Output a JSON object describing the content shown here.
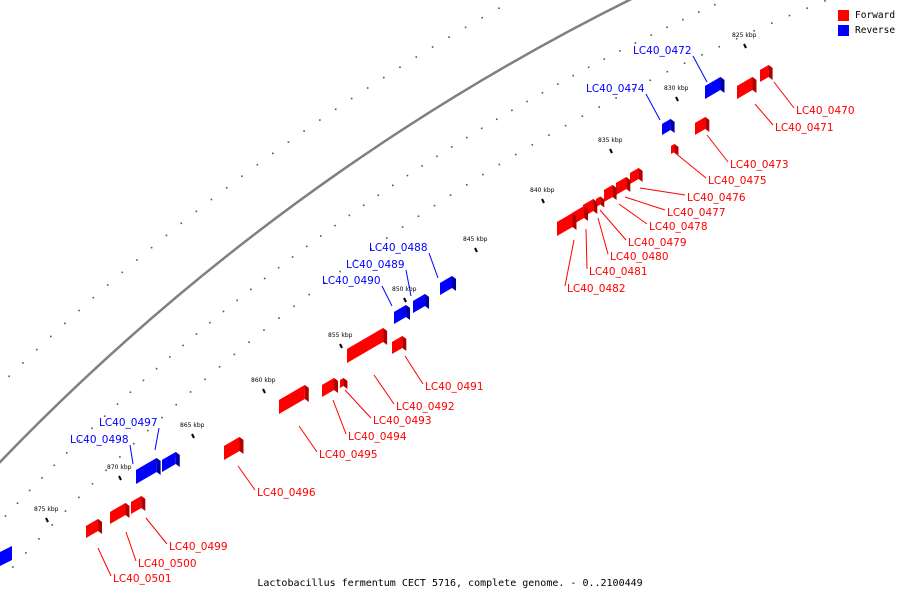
{
  "legend": [
    {
      "label": "Forward",
      "color": "#ff0000"
    },
    {
      "label": "Reverse",
      "color": "#0000ff"
    }
  ],
  "caption": "Lactobacillus fermentum CECT 5716, complete genome. - 0..2100449",
  "colors": {
    "forward": "#ff0000",
    "reverse": "#0000ff",
    "backbone": "#808080",
    "tick": "#000000"
  },
  "ticks": [
    "825 kbp",
    "830 kbp",
    "835 kbp",
    "840 kbp",
    "845 kbp",
    "850 kbp",
    "855 kbp",
    "860 kbp",
    "865 kbp",
    "870 kbp",
    "875 kbp"
  ],
  "genes": [
    {
      "label": "LC40_0470",
      "strand": "forward"
    },
    {
      "label": "LC40_0471",
      "strand": "forward"
    },
    {
      "label": "LC40_0472",
      "strand": "reverse"
    },
    {
      "label": "LC40_0473",
      "strand": "forward"
    },
    {
      "label": "LC40_0474",
      "strand": "reverse"
    },
    {
      "label": "LC40_0475",
      "strand": "forward"
    },
    {
      "label": "LC40_0476",
      "strand": "forward"
    },
    {
      "label": "LC40_0477",
      "strand": "forward"
    },
    {
      "label": "LC40_0478",
      "strand": "forward"
    },
    {
      "label": "LC40_0479",
      "strand": "forward"
    },
    {
      "label": "LC40_0480",
      "strand": "forward"
    },
    {
      "label": "LC40_0481",
      "strand": "forward"
    },
    {
      "label": "LC40_0482",
      "strand": "forward"
    },
    {
      "label": "LC40_0488",
      "strand": "reverse"
    },
    {
      "label": "LC40_0489",
      "strand": "reverse"
    },
    {
      "label": "LC40_0490",
      "strand": "reverse"
    },
    {
      "label": "LC40_0491",
      "strand": "forward"
    },
    {
      "label": "LC40_0492",
      "strand": "forward"
    },
    {
      "label": "LC40_0493",
      "strand": "forward"
    },
    {
      "label": "LC40_0494",
      "strand": "forward"
    },
    {
      "label": "LC40_0495",
      "strand": "forward"
    },
    {
      "label": "LC40_0496",
      "strand": "forward"
    },
    {
      "label": "LC40_0497",
      "strand": "reverse"
    },
    {
      "label": "LC40_0498",
      "strand": "reverse"
    },
    {
      "label": "LC40_0499",
      "strand": "forward"
    },
    {
      "label": "LC40_0500",
      "strand": "forward"
    },
    {
      "label": "LC40_0501",
      "strand": "forward"
    }
  ]
}
